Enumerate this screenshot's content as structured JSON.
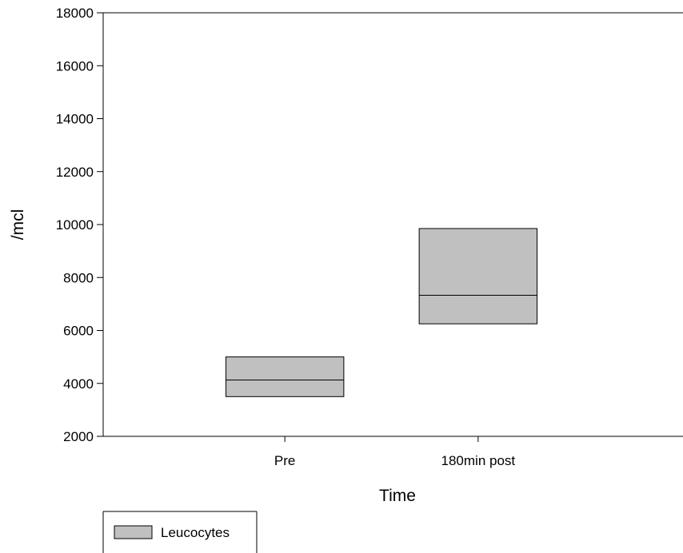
{
  "chart_data": {
    "type": "box",
    "xlabel": "Time",
    "ylabel": "/mcl",
    "ylim": [
      2000,
      18000
    ],
    "yticks": [
      2000,
      4000,
      6000,
      8000,
      10000,
      12000,
      14000,
      16000,
      18000
    ],
    "ytick_labels": [
      "2000",
      "4000",
      "6000",
      "8000",
      "10000",
      "12000",
      "14000",
      "16000",
      "18000"
    ],
    "categories": [
      "Pre",
      "180min post"
    ],
    "series": [
      {
        "name": "Leucocytes",
        "color": "#c0c0c0",
        "boxes": [
          {
            "category": "Pre",
            "q1": 3500,
            "median": 4130,
            "q3": 5000
          },
          {
            "category": "180min post",
            "q1": 6250,
            "median": 7330,
            "q3": 9850
          }
        ]
      }
    ],
    "grid": false,
    "legend_position": "bottom-left"
  }
}
